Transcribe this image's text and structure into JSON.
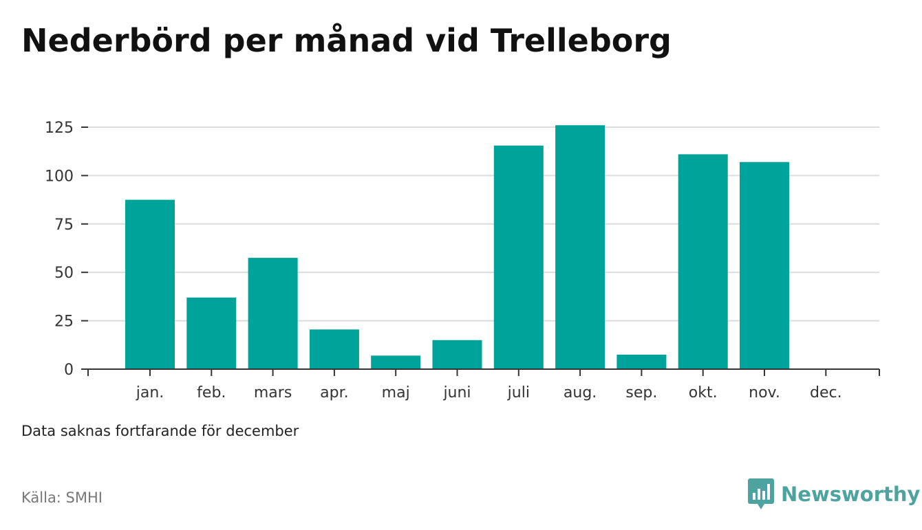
{
  "title": "Nederbörd per månad vid Trelleborg",
  "note": "Data saknas fortfarande för december",
  "source": "Källa: SMHI",
  "brand": "Newsworthy",
  "colors": {
    "bar": "#00a39a",
    "grid": "#dcdcdc",
    "axis": "#333333",
    "brand": "#4da3a0"
  },
  "chart_data": {
    "type": "bar",
    "categories": [
      "jan.",
      "feb.",
      "mars",
      "apr.",
      "maj",
      "juni",
      "juli",
      "aug.",
      "sep.",
      "okt.",
      "nov.",
      "dec."
    ],
    "values": [
      87.5,
      37,
      57.5,
      20.5,
      7,
      15,
      115.5,
      126,
      7.5,
      111,
      107,
      null
    ],
    "yticks": [
      "0",
      "25",
      "50",
      "75",
      "100",
      "125"
    ],
    "ylim": [
      0,
      125
    ],
    "grid": true
  }
}
